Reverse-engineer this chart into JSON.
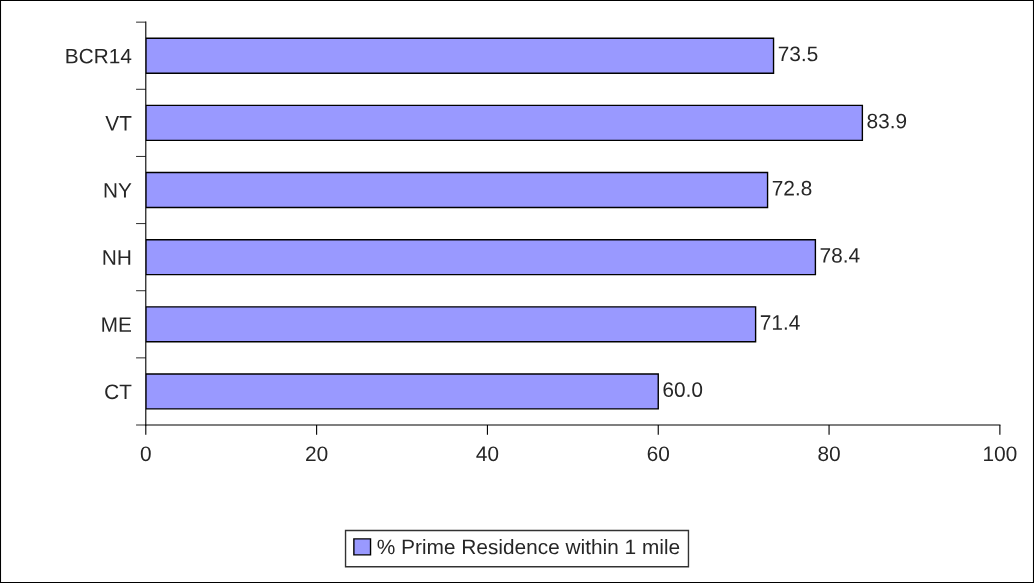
{
  "chart_data": {
    "type": "bar",
    "orientation": "horizontal",
    "categories": [
      "BCR14",
      "VT",
      "NY",
      "NH",
      "ME",
      "CT"
    ],
    "series": [
      {
        "name": "% Prime Residence within 1 mile",
        "color": "#9999ff",
        "values": [
          73.5,
          83.9,
          72.8,
          78.4,
          71.4,
          60.0
        ],
        "value_labels": [
          "73.5",
          "83.9",
          "72.8",
          "78.4",
          "71.4",
          "60.0"
        ]
      }
    ],
    "xlim": [
      0,
      100
    ],
    "xticks": [
      0,
      20,
      40,
      60,
      80,
      100
    ],
    "grid": false,
    "legend": "bottom"
  }
}
